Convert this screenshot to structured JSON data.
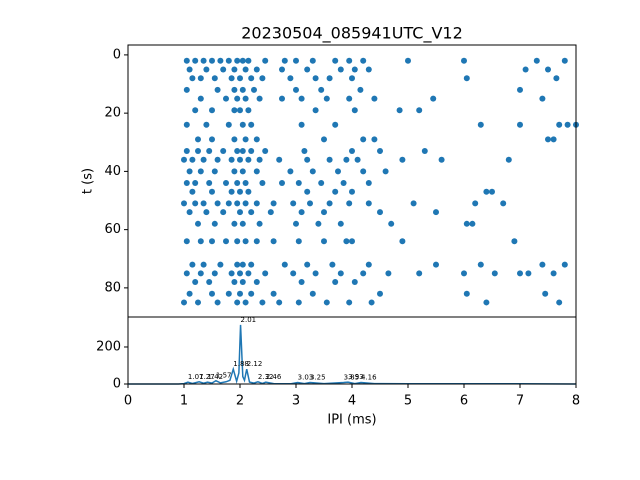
{
  "chart_data": [
    {
      "type": "scatter",
      "title": "20230504_085941UTC_V12",
      "y_label": "t (s)",
      "color": "#1f77b4",
      "xlim": [
        0,
        8
      ],
      "ylim": [
        90,
        -3.4
      ],
      "yticks": [
        0,
        20,
        40,
        60,
        80
      ],
      "series": [
        {
          "color": "#1f77b4",
          "x": [
            1.05,
            1.2,
            1.35,
            1.5,
            1.65,
            1.8,
            1.95,
            2.05,
            2.15,
            2.45,
            2.8,
            3.0,
            3.3,
            3.7,
            3.95,
            4.2,
            5.0,
            6.0,
            7.3,
            7.8,
            1.1,
            1.4,
            1.7,
            1.9,
            2.1,
            2.3,
            2.75,
            3.2,
            3.8,
            4.05,
            4.3,
            7.1,
            7.5,
            1.15,
            1.3,
            1.55,
            1.85,
            2.0,
            2.2,
            2.4,
            2.9,
            3.35,
            3.6,
            4.0,
            6.05,
            7.65,
            1.05,
            1.6,
            1.9,
            2.05,
            2.25,
            3.0,
            3.45,
            4.15,
            7.0,
            1.3,
            1.75,
            1.95,
            2.1,
            2.35,
            2.75,
            3.1,
            3.55,
            3.95,
            4.4,
            5.45,
            7.4,
            1.2,
            1.5,
            1.9,
            2.0,
            2.15,
            3.35,
            4.05,
            4.85,
            5.2,
            1.05,
            1.4,
            1.8,
            2.05,
            2.2,
            3.1,
            3.7,
            6.3,
            7.0,
            7.7,
            7.85,
            8.0,
            1.25,
            1.5,
            1.9,
            2.1,
            2.3,
            3.5,
            4.2,
            4.4,
            7.5,
            7.6,
            1.05,
            1.25,
            1.45,
            1.7,
            1.95,
            2.05,
            2.2,
            2.45,
            3.15,
            4.0,
            4.5,
            5.3,
            1.0,
            1.15,
            1.35,
            1.6,
            1.85,
            2.0,
            2.15,
            2.35,
            2.7,
            3.2,
            3.6,
            3.9,
            4.1,
            4.9,
            5.6,
            6.8,
            1.1,
            1.3,
            1.55,
            1.9,
            2.05,
            2.3,
            2.9,
            3.3,
            3.75,
            4.2,
            4.6,
            1.05,
            1.2,
            1.45,
            1.75,
            1.95,
            2.1,
            2.4,
            2.75,
            3.05,
            3.45,
            3.85,
            4.3,
            1.15,
            1.5,
            1.85,
            2.0,
            2.15,
            3.2,
            3.7,
            4.0,
            6.4,
            6.5,
            1.0,
            1.2,
            1.35,
            1.6,
            1.8,
            1.95,
            2.1,
            2.3,
            2.6,
            2.95,
            3.25,
            3.6,
            3.95,
            4.3,
            5.1,
            6.2,
            6.7,
            1.1,
            1.4,
            1.7,
            2.0,
            2.2,
            2.55,
            3.1,
            3.5,
            4.5,
            5.5,
            1.25,
            1.55,
            1.9,
            2.05,
            2.35,
            3.0,
            3.4,
            3.8,
            4.7,
            6.05,
            6.15,
            1.05,
            1.3,
            1.5,
            1.75,
            1.95,
            2.1,
            2.3,
            2.6,
            3.05,
            3.5,
            3.9,
            4.0,
            4.9,
            6.9,
            1.15,
            1.35,
            1.65,
            1.95,
            2.05,
            2.2,
            2.8,
            3.2,
            3.65,
            4.3,
            5.5,
            6.3,
            7.4,
            7.8,
            1.05,
            1.3,
            1.55,
            1.85,
            2.0,
            2.15,
            2.45,
            2.95,
            3.35,
            3.8,
            4.2,
            4.65,
            5.2,
            6.0,
            6.55,
            7.0,
            7.15,
            7.6,
            1.2,
            1.45,
            1.9,
            2.05,
            2.3,
            3.1,
            3.7,
            4.05,
            1.1,
            1.5,
            1.8,
            2.0,
            2.2,
            2.6,
            3.3,
            4.5,
            6.05,
            7.45,
            1.0,
            1.25,
            1.6,
            1.95,
            2.1,
            2.4,
            2.7,
            3.05,
            3.55,
            3.95,
            4.35,
            6.4,
            7.7
          ],
          "values": [
            2,
            2,
            2,
            2,
            2,
            2,
            2,
            2,
            2,
            2,
            2,
            2,
            2,
            2,
            2,
            2,
            2,
            2,
            2,
            2,
            5,
            5,
            5,
            5,
            5,
            5,
            5,
            5,
            5,
            5,
            5,
            5,
            5,
            8,
            8,
            8,
            8,
            8,
            8,
            8,
            8,
            8,
            8,
            8,
            8,
            8,
            12,
            12,
            12,
            12,
            12,
            12,
            12,
            12,
            12,
            15,
            15,
            15,
            15,
            15,
            15,
            15,
            15,
            15,
            15,
            15,
            15,
            19,
            19,
            19,
            19,
            19,
            19,
            19,
            19,
            19,
            24,
            24,
            24,
            24,
            24,
            24,
            24,
            24,
            24,
            24,
            24,
            24,
            29,
            29,
            29,
            29,
            29,
            29,
            29,
            29,
            29,
            29,
            33,
            33,
            33,
            33,
            33,
            33,
            33,
            33,
            33,
            33,
            33,
            33,
            36,
            36,
            36,
            36,
            36,
            36,
            36,
            36,
            36,
            36,
            36,
            36,
            36,
            36,
            36,
            36,
            40,
            40,
            40,
            40,
            40,
            40,
            40,
            40,
            40,
            40,
            40,
            44,
            44,
            44,
            44,
            44,
            44,
            44,
            44,
            44,
            44,
            44,
            44,
            47,
            47,
            47,
            47,
            47,
            47,
            47,
            47,
            47,
            47,
            51,
            51,
            51,
            51,
            51,
            51,
            51,
            51,
            51,
            51,
            51,
            51,
            51,
            51,
            51,
            51,
            51,
            54,
            54,
            54,
            54,
            54,
            54,
            54,
            54,
            54,
            54,
            58,
            58,
            58,
            58,
            58,
            58,
            58,
            58,
            58,
            58,
            58,
            64,
            64,
            64,
            64,
            64,
            64,
            64,
            64,
            64,
            64,
            64,
            64,
            64,
            64,
            72,
            72,
            72,
            72,
            72,
            72,
            72,
            72,
            72,
            72,
            72,
            72,
            72,
            72,
            75,
            75,
            75,
            75,
            75,
            75,
            75,
            75,
            75,
            75,
            75,
            75,
            75,
            75,
            75,
            75,
            75,
            75,
            78,
            78,
            78,
            78,
            78,
            78,
            78,
            78,
            82,
            82,
            82,
            82,
            82,
            82,
            82,
            82,
            82,
            82,
            85,
            85,
            85,
            85,
            85,
            85,
            85,
            85,
            85,
            85,
            85,
            85,
            85
          ]
        }
      ]
    },
    {
      "type": "line",
      "x_label": "IPI (ms)",
      "color": "#1f77b4",
      "xlim": [
        0,
        8
      ],
      "xticks": [
        0,
        1,
        2,
        3,
        4,
        5,
        6,
        7,
        8
      ],
      "ylim": [
        0,
        362
      ],
      "yticks": [
        0,
        200
      ],
      "series": [
        {
          "color": "#1f77b4",
          "x": [
            0,
            0.9,
            1.0,
            1.07,
            1.15,
            1.27,
            1.35,
            1.42,
            1.5,
            1.57,
            1.65,
            1.75,
            1.82,
            1.88,
            1.94,
            1.98,
            2.01,
            2.05,
            2.08,
            2.12,
            2.17,
            2.25,
            2.32,
            2.4,
            2.46,
            2.6,
            2.9,
            3.03,
            3.15,
            3.25,
            3.5,
            3.85,
            3.93,
            4.05,
            4.16,
            4.4,
            5,
            6,
            7,
            8
          ],
          "values": [
            0,
            0,
            2,
            10,
            3,
            12,
            4,
            10,
            5,
            18,
            6,
            12,
            20,
            80,
            15,
            60,
            319,
            40,
            20,
            80,
            10,
            5,
            12,
            3,
            10,
            2,
            1,
            8,
            2,
            8,
            2,
            8,
            10,
            2,
            8,
            2,
            1,
            1,
            1,
            0
          ]
        }
      ],
      "annotations": [
        {
          "x": 1.07,
          "y": 10,
          "text": "1.07"
        },
        {
          "x": 1.27,
          "y": 12,
          "text": "1.27"
        },
        {
          "x": 1.42,
          "y": 10,
          "text": "1.42"
        },
        {
          "x": 1.57,
          "y": 18,
          "text": "1.57"
        },
        {
          "x": 1.88,
          "y": 80,
          "text": "1.88"
        },
        {
          "x": 2.01,
          "y": 319,
          "text": "2.01"
        },
        {
          "x": 2.12,
          "y": 80,
          "text": "2.12"
        },
        {
          "x": 2.32,
          "y": 12,
          "text": "2.32"
        },
        {
          "x": 2.46,
          "y": 10,
          "text": "2.46"
        },
        {
          "x": 3.03,
          "y": 8,
          "text": "3.03"
        },
        {
          "x": 3.25,
          "y": 8,
          "text": "3.25"
        },
        {
          "x": 3.85,
          "y": 8,
          "text": "3.85"
        },
        {
          "x": 3.93,
          "y": 10,
          "text": "3.93"
        },
        {
          "x": 4.16,
          "y": 8,
          "text": "4.16"
        }
      ]
    }
  ]
}
